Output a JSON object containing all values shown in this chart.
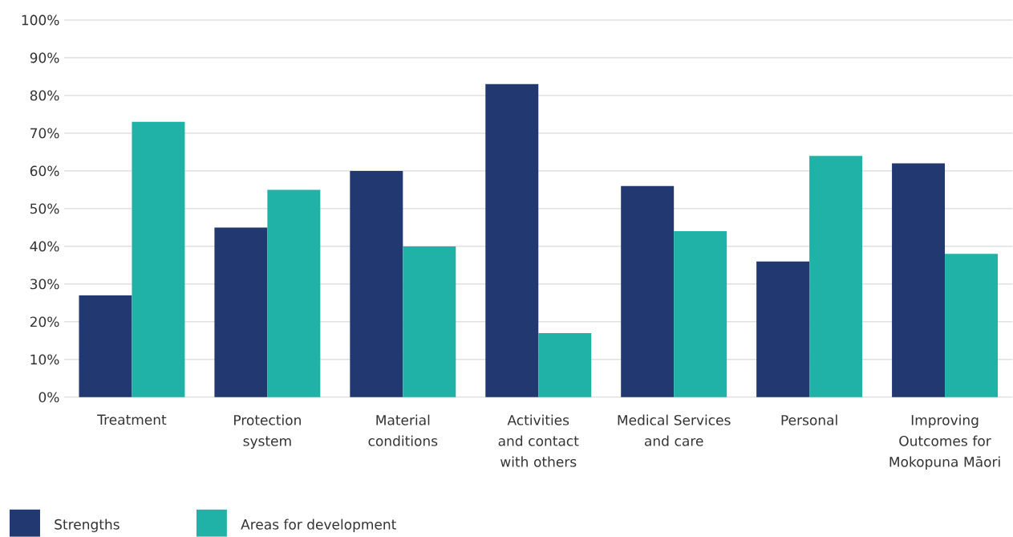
{
  "chart_data": {
    "type": "bar",
    "categories": [
      "Treatment",
      "Protection system",
      "Material conditions",
      "Activities and contact with others",
      "Medical Services and care",
      "Personal",
      "Improving Outcomes for Mokopuna Māori"
    ],
    "series": [
      {
        "name": "Strengths",
        "color": "#223871",
        "values": [
          27,
          45,
          60,
          83,
          56,
          36,
          62
        ]
      },
      {
        "name": "Areas for development",
        "color": "#20b2a6",
        "values": [
          73,
          55,
          40,
          17,
          44,
          64,
          38
        ]
      }
    ],
    "ylim": [
      0,
      100
    ],
    "yticks": [
      {
        "value": 0,
        "label": "0%"
      },
      {
        "value": 10,
        "label": "10%"
      },
      {
        "value": 20,
        "label": "20%"
      },
      {
        "value": 30,
        "label": "30%"
      },
      {
        "value": 40,
        "label": "40%"
      },
      {
        "value": 50,
        "label": "50%"
      },
      {
        "value": 60,
        "label": "60%"
      },
      {
        "value": 70,
        "label": "70%"
      },
      {
        "value": 80,
        "label": "80%"
      },
      {
        "value": 90,
        "label": "90%"
      },
      {
        "value": 100,
        "label": "100%"
      }
    ],
    "grid": "y",
    "legend": "bottom left"
  }
}
